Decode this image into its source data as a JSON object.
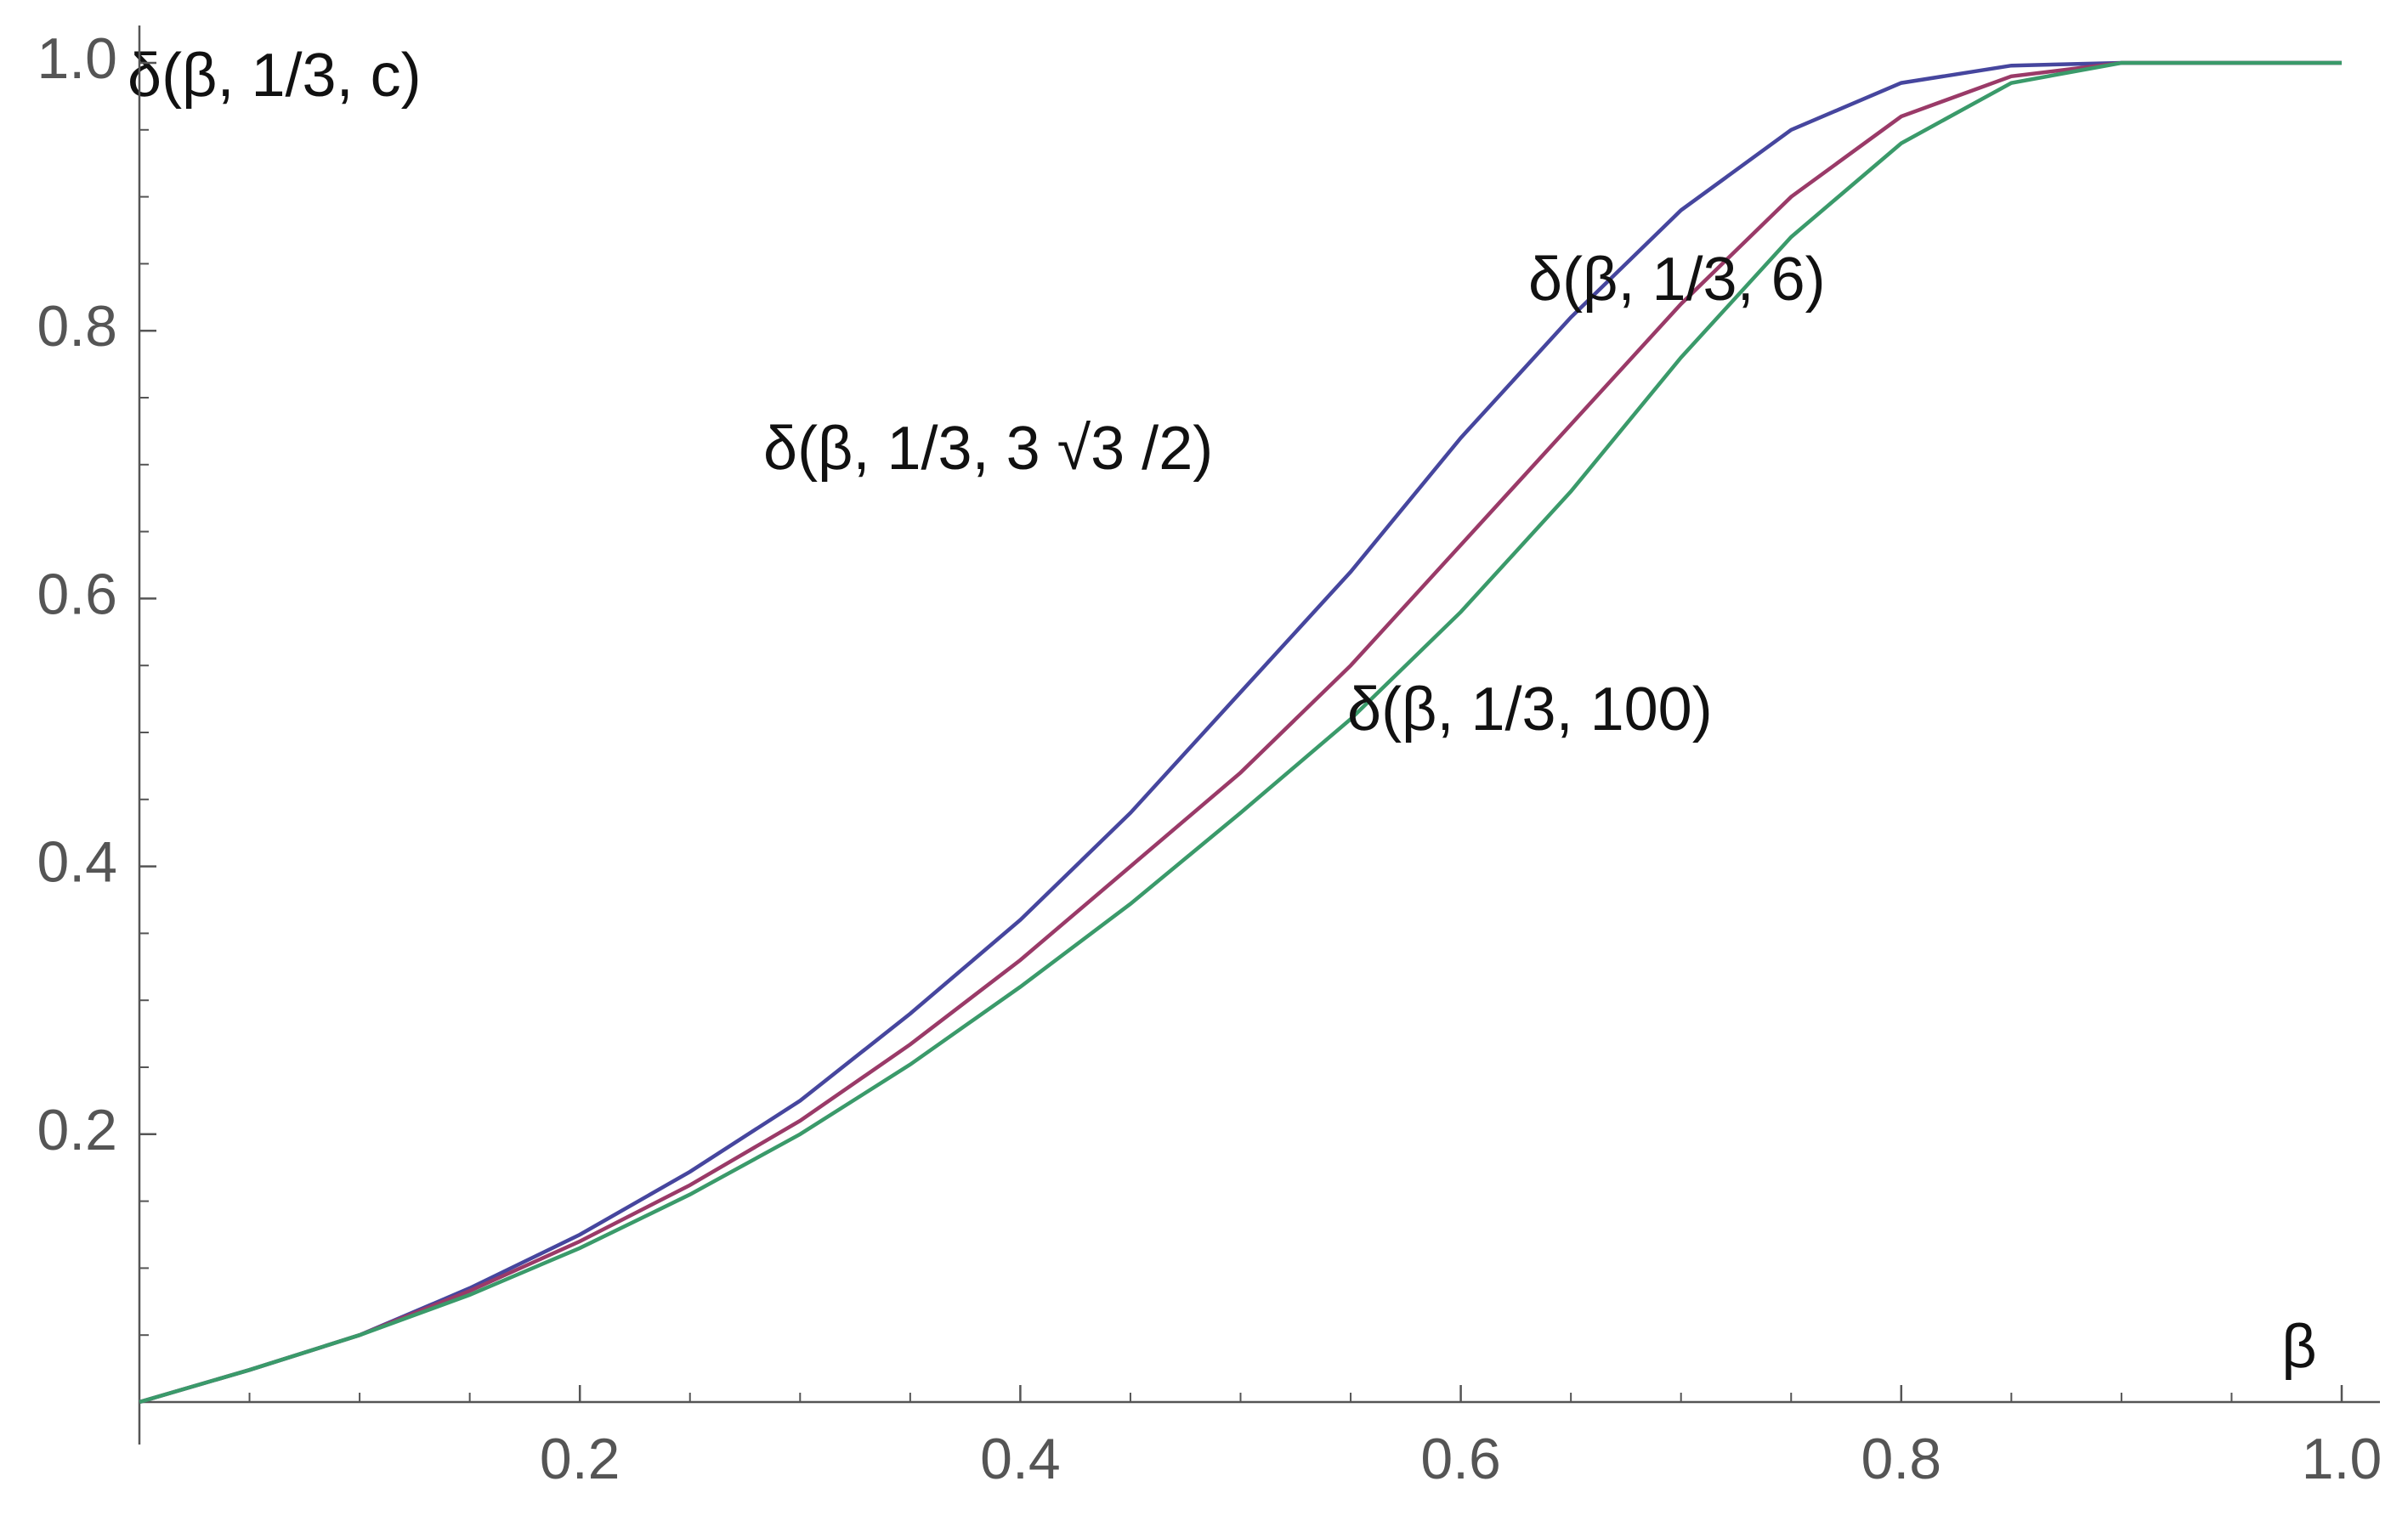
{
  "chart_data": {
    "type": "line",
    "x_label": "β",
    "y_label": "δ(β, 1/3, c)",
    "x": [
      0,
      0.05,
      0.1,
      0.15,
      0.2,
      0.25,
      0.3,
      0.35,
      0.4,
      0.45,
      0.5,
      0.55,
      0.6,
      0.65,
      0.7,
      0.75,
      0.8,
      0.85,
      0.9,
      0.95,
      1.0
    ],
    "series": [
      {
        "name": "δ(β, 1/3, 3 √3 /2)",
        "color": "#46469e",
        "values": [
          0,
          0.024,
          0.05,
          0.085,
          0.125,
          0.172,
          0.225,
          0.29,
          0.36,
          0.44,
          0.53,
          0.62,
          0.72,
          0.81,
          0.89,
          0.95,
          0.985,
          0.998,
          1,
          1,
          1
        ]
      },
      {
        "name": "δ(β, 1/3, 6)",
        "color": "#9a3a68",
        "values": [
          0,
          0.024,
          0.05,
          0.083,
          0.12,
          0.162,
          0.21,
          0.267,
          0.33,
          0.4,
          0.47,
          0.55,
          0.64,
          0.73,
          0.82,
          0.9,
          0.96,
          0.99,
          1,
          1,
          1
        ]
      },
      {
        "name": "δ(β, 1/3, 100)",
        "color": "#3a9a6a",
        "values": [
          0,
          0.024,
          0.05,
          0.08,
          0.115,
          0.155,
          0.2,
          0.252,
          0.31,
          0.372,
          0.44,
          0.51,
          0.59,
          0.68,
          0.78,
          0.87,
          0.94,
          0.985,
          1,
          1,
          1
        ]
      }
    ],
    "xlim": [
      0,
      1.0
    ],
    "ylim": [
      0,
      1.0
    ],
    "xticks": [
      0.2,
      0.4,
      0.6,
      0.8,
      {
        "value": 1.0,
        "label": "1.0"
      }
    ],
    "yticks": [
      0.2,
      0.4,
      0.6,
      0.8,
      {
        "value": 1.0,
        "label": "1.0"
      }
    ],
    "xminorticks": [
      0.05,
      0.1,
      0.15,
      0.25,
      0.3,
      0.35,
      0.45,
      0.5,
      0.55,
      0.65,
      0.7,
      0.75,
      0.85,
      0.9,
      0.95
    ],
    "yminorticks": [
      0.05,
      0.1,
      0.15,
      0.25,
      0.3,
      0.35,
      0.45,
      0.5,
      0.55,
      0.65,
      0.7,
      0.75,
      0.85,
      0.9,
      0.95
    ],
    "grid": false
  }
}
